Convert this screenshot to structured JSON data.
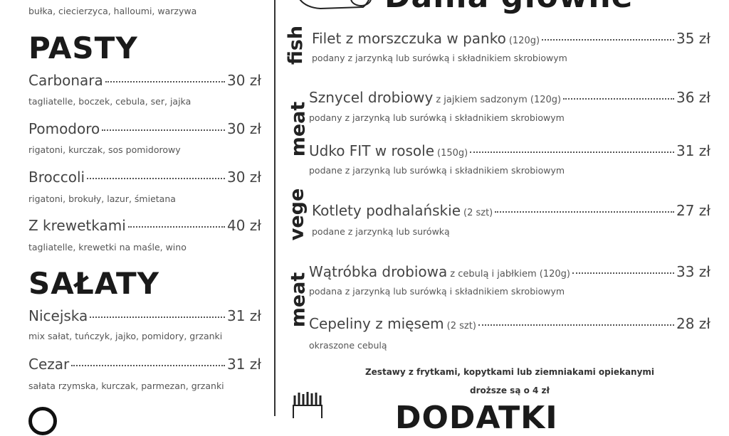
{
  "left": {
    "top_desc": "bułka, ciecierzyca, halloumi, warzywa",
    "sections": [
      {
        "title": "PASTY",
        "items": [
          {
            "name": "Carbonara",
            "price": "30 zł",
            "desc": "tagliatelle, boczek, cebula, ser, jajka"
          },
          {
            "name": "Pomodoro",
            "price": "30 zł",
            "desc": "rigatoni, kurczak, sos pomidorowy"
          },
          {
            "name": "Broccoli",
            "price": "30 zł",
            "desc": "rigatoni, brokuły, lazur, śmietana"
          },
          {
            "name": "Z krewetkami",
            "price": "40 zł",
            "desc": "tagliatelle, krewetki na maśle, wino"
          }
        ]
      },
      {
        "title": "SAŁATY",
        "items": [
          {
            "name": "Nicejska",
            "price": "31 zł",
            "desc": "mix sałat, tuńczyk, jajko, pomidory, grzanki"
          },
          {
            "name": "Cezar",
            "price": "31 zł",
            "desc": "sałata rzymska, kurczak, parmezan, grzanki"
          }
        ]
      }
    ]
  },
  "right": {
    "title": "Dania główne",
    "categories": [
      "fish",
      "meat",
      "vege",
      "meat"
    ],
    "items": [
      {
        "name": "Filet z morszczuka w panko",
        "extra": "(120g)",
        "price": "35 zł",
        "desc": "podany z jarzynką lub surówką i składnikiem skrobiowym"
      },
      {
        "name": "Sznycel drobiowy",
        "extra": "z jajkiem sadzonym (120g)",
        "price": "36 zł",
        "desc": "podany z jarzynką lub surówką i składnikiem skrobiowym"
      },
      {
        "name": "Udko FIT w rosole",
        "extra": "(150g)",
        "price": "31 zł",
        "desc": "podane z jarzynką lub surówką i składnikiem skrobiowym"
      },
      {
        "name": "Kotlety podhalańskie",
        "extra": "(2 szt)",
        "price": "27 zł",
        "desc": "podane z jarzynką lub surówką"
      },
      {
        "name": "Wątróbka drobiowa",
        "extra": "z cebulą i jabłkiem (120g)",
        "price": "33 zł",
        "desc": "podana z jarzynką lub surówką i składnikiem skrobiowym"
      },
      {
        "name": "Cepeliny z mięsem",
        "extra": "(2 szt)",
        "price": "28 zł",
        "desc": "okraszone cebulą"
      }
    ],
    "note_line1": "Zestawy z frytkami, kopytkami lub ziemniakami opiekanymi",
    "note_line2": "droższe są o 4 zł",
    "bottom_title": "DODATKI",
    "icons": [
      "pot-icon",
      "fries-icon"
    ]
  }
}
